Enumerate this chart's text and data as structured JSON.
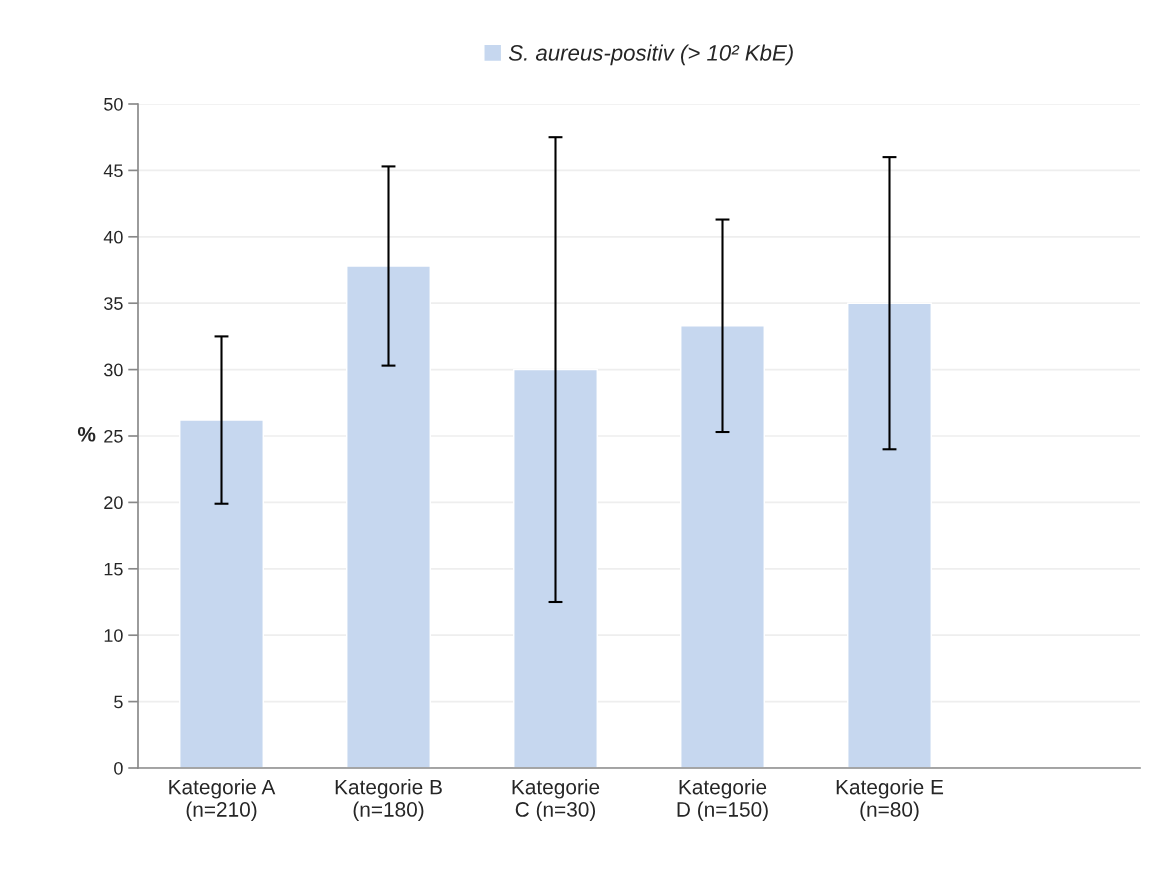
{
  "chart_data": {
    "type": "bar",
    "categories": [
      "Kategorie A\n(n=210)",
      "Kategorie B\n(n=180)",
      "Kategorie\nC (n=30)",
      "Kategorie\nD (n=150)",
      "Kategorie E\n(n=80)",
      null
    ],
    "series": [
      {
        "name": "S. aureus-positiv (> 10² KbE)",
        "color": "#c6d7ef",
        "values": [
          26.2,
          37.8,
          30.0,
          33.3,
          35.0,
          null
        ],
        "errors": [
          [
            19.9,
            32.5
          ],
          [
            30.3,
            45.3
          ],
          [
            12.5,
            47.5
          ],
          [
            25.3,
            41.3
          ],
          [
            24.0,
            46.0
          ],
          null
        ]
      }
    ],
    "ylabel": "%",
    "ylim": [
      0,
      50
    ],
    "yticks": [
      0,
      5,
      10,
      15,
      20,
      25,
      30,
      35,
      40,
      45,
      50
    ],
    "grid": "y",
    "legend": "top"
  }
}
